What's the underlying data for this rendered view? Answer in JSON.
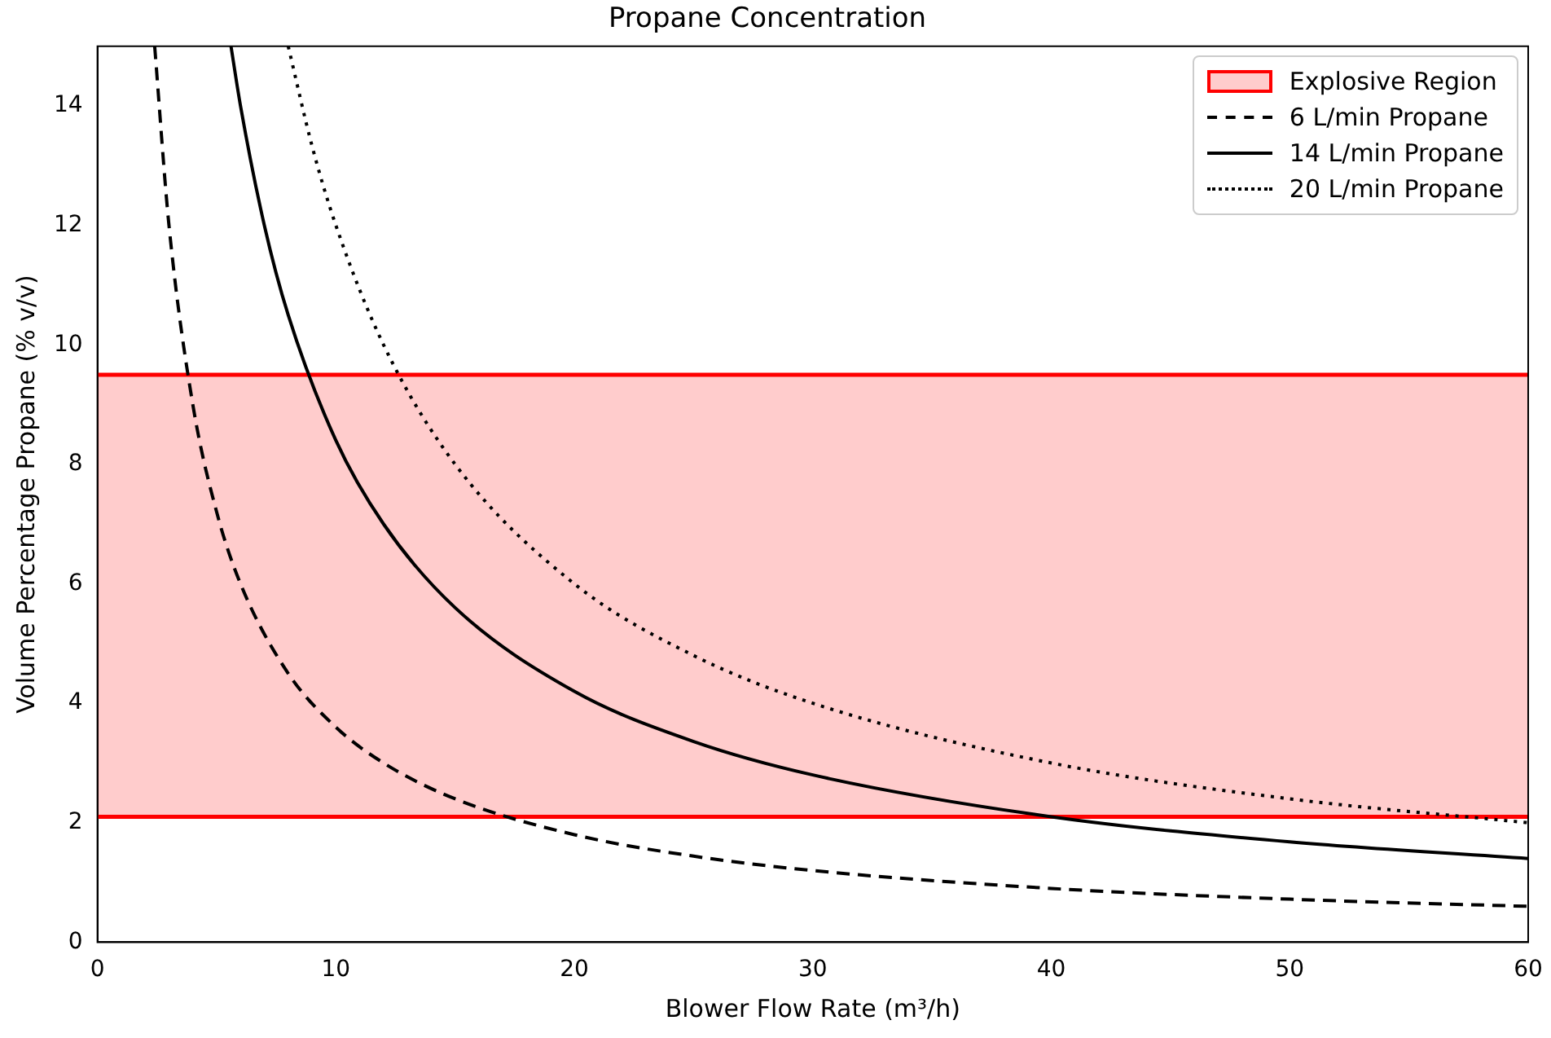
{
  "chart_data": {
    "type": "line",
    "title": "Propane Concentration",
    "xlabel": "Blower Flow Rate (m³/h)",
    "ylabel": "Volume Percentage Propane (% v/v)",
    "xlim": [
      0,
      60
    ],
    "xticks": [
      0,
      10,
      20,
      30,
      40,
      50,
      60
    ],
    "ylim": [
      0,
      15
    ],
    "yticks": [
      0,
      2,
      4,
      6,
      8,
      10,
      12,
      14
    ],
    "legend": "top right",
    "grid": false,
    "marker": "none",
    "bands": [
      {
        "axis": "y",
        "from": 2.1,
        "to": 9.5,
        "label": "Explosive Region",
        "color": "#ff0000"
      }
    ],
    "ref_lines": [
      {
        "axis": "y",
        "value": 2.1,
        "color": "#ff0000"
      },
      {
        "axis": "y",
        "value": 9.5,
        "color": "#ff0000"
      }
    ],
    "series": [
      {
        "name": "6 L/min Propane",
        "color": "#000000",
        "line_style": "dashed",
        "x": [
          2.4,
          3,
          4,
          5,
          6,
          8,
          10,
          12,
          15,
          20,
          25,
          30,
          40,
          50,
          60
        ],
        "values": [
          15,
          12,
          9,
          7.2,
          6,
          4.5,
          3.6,
          3,
          2.4,
          1.8,
          1.44,
          1.2,
          0.9,
          0.72,
          0.6
        ]
      },
      {
        "name": "14 L/min Propane",
        "color": "#000000",
        "line_style": "solid",
        "x": [
          5.6,
          6,
          7,
          8,
          10,
          12,
          15,
          20,
          25,
          30,
          40,
          50,
          60
        ],
        "values": [
          15,
          14,
          12,
          10.5,
          8.4,
          7,
          5.6,
          4.2,
          3.36,
          2.8,
          2.1,
          1.68,
          1.4
        ]
      },
      {
        "name": "20 L/min Propane",
        "color": "#000000",
        "line_style": "dotted",
        "x": [
          8,
          9,
          10,
          12,
          15,
          20,
          25,
          30,
          40,
          50,
          60
        ],
        "values": [
          15,
          13.33,
          12,
          10,
          8,
          6,
          4.8,
          4,
          3,
          2.4,
          2
        ]
      }
    ]
  }
}
